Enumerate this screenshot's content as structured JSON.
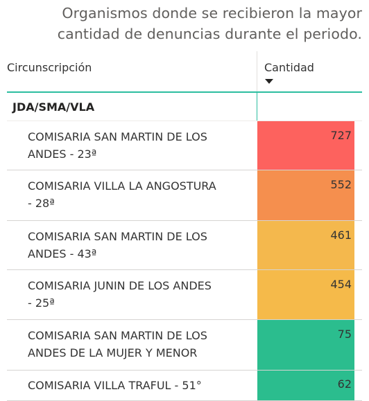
{
  "title": {
    "line1": "Organismos donde se recibieron la mayor",
    "line2": "cantidad de denuncias durante el periodo."
  },
  "table": {
    "columns": {
      "left": "Circunscripción",
      "right": "Cantidad"
    },
    "sort_icon": "sort-descending-icon",
    "group": "JDA/SMA/VLA",
    "rows": [
      {
        "name_l1": "COMISARIA SAN MARTIN DE LOS",
        "name_l2": "ANDES - 23ª",
        "value": "727",
        "color": "#fd625e"
      },
      {
        "name_l1": "COMISARIA VILLA LA ANGOSTURA",
        "name_l2": "- 28ª",
        "value": "552",
        "color": "#f58f4e"
      },
      {
        "name_l1": "COMISARIA SAN MARTIN DE LOS",
        "name_l2": "ANDES - 43ª",
        "value": "461",
        "color": "#f4b84d"
      },
      {
        "name_l1": "COMISARIA JUNIN DE LOS ANDES",
        "name_l2": "- 25ª",
        "value": "454",
        "color": "#f5ba4a"
      },
      {
        "name_l1": "COMISARIA SAN MARTIN DE LOS",
        "name_l2": "ANDES DE LA MUJER Y MENOR",
        "value": "75",
        "color": "#2bbd8e"
      },
      {
        "name_l1": "COMISARIA VILLA TRAFUL - 51°",
        "name_l2": "",
        "value": "62",
        "color": "#2bbd8e"
      }
    ]
  }
}
